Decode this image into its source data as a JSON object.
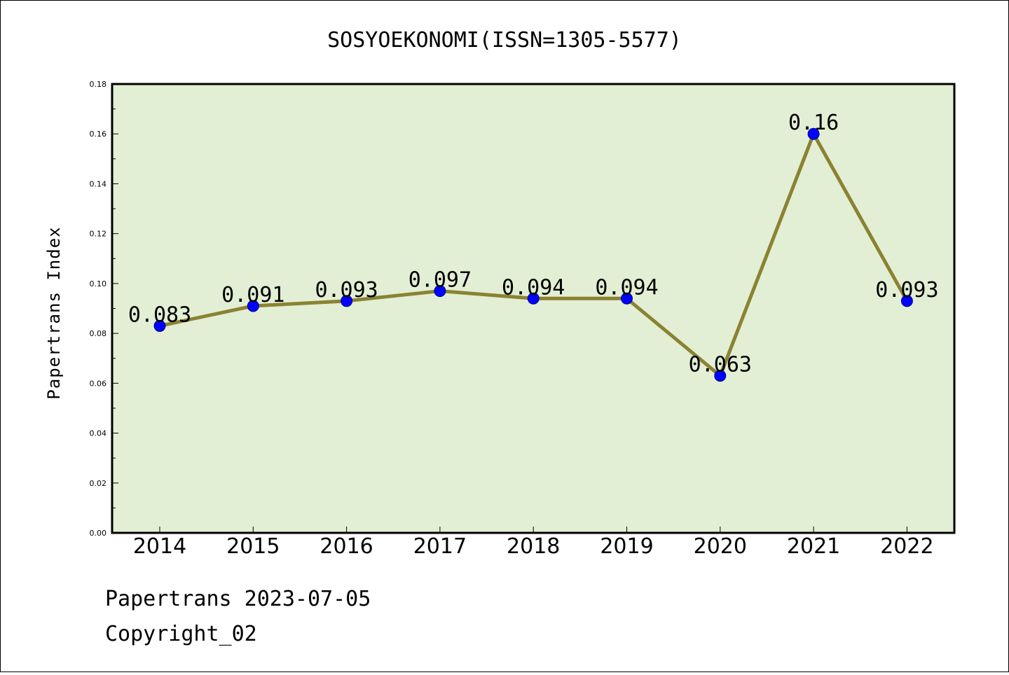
{
  "chart_data": {
    "type": "line",
    "title": "SOSYOEKONOMI(ISSN=1305-5577)",
    "xlabel": "",
    "ylabel": "Papertrans Index",
    "categories": [
      "2014",
      "2015",
      "2016",
      "2017",
      "2018",
      "2019",
      "2020",
      "2021",
      "2022"
    ],
    "series": [
      {
        "values": [
          0.083,
          0.091,
          0.093,
          0.097,
          0.094,
          0.094,
          0.063,
          0.16,
          0.093
        ],
        "labels": [
          "0.083",
          "0.091",
          "0.093",
          "0.097",
          "0.094",
          "0.094",
          "0.063",
          "0.16",
          "0.093"
        ]
      }
    ],
    "ylim": [
      0,
      0.18
    ],
    "yticks": [
      "0.00",
      "0.02",
      "0.04",
      "0.06",
      "0.08",
      "0.10",
      "0.12",
      "0.14",
      "0.16",
      "0.18"
    ],
    "grid": false,
    "colors": {
      "plot_background": "#e2efd4",
      "line": "#8b8232",
      "marker": "#0000ff"
    }
  },
  "footer": {
    "line1": "Papertrans 2023-07-05",
    "line2": "Copyright_02"
  }
}
